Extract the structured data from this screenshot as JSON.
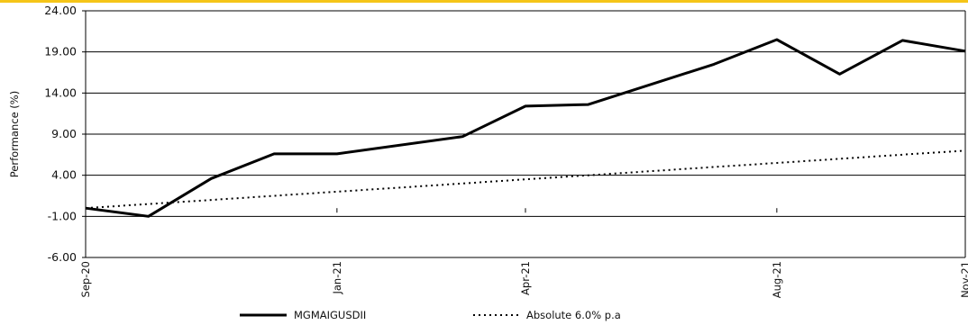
{
  "accent_color": "#f5c518",
  "chart_data": {
    "type": "line",
    "title": "",
    "xlabel": "",
    "ylabel": "Performance (%)",
    "ylim": [
      -6,
      24
    ],
    "yticks": [
      "-6.00",
      "-1.00",
      "4.00",
      "9.00",
      "14.00",
      "19.00",
      "24.00"
    ],
    "ytick_values": [
      -6,
      -1,
      4,
      9,
      14,
      19,
      24
    ],
    "x": [
      "Sep-20",
      "Oct-20",
      "Nov-20",
      "Dec-20",
      "Jan-21",
      "Feb-21",
      "Mar-21",
      "Apr-21",
      "May-21",
      "Jun-21",
      "Jul-21",
      "Aug-21",
      "Sep-21",
      "Oct-21",
      "Nov-21"
    ],
    "xtick_labels": [
      "Sep-20",
      "Jan-21",
      "Apr-21",
      "Aug-21",
      "Nov-21"
    ],
    "grid": "horizontal",
    "legend_position": "bottom",
    "series": [
      {
        "name": "MGMAIGUSDII",
        "style": "solid",
        "color": "#000000",
        "values": [
          0,
          -1,
          3.6,
          6.6,
          6.6,
          null,
          8.7,
          12.4,
          12.6,
          null,
          17.5,
          20.5,
          16.3,
          20.4,
          19.1
        ]
      },
      {
        "name": "Absolute 6.0% p.a",
        "style": "dotted",
        "color": "#000000",
        "values": [
          0,
          0.5,
          1,
          1.5,
          2,
          2.5,
          3,
          3.5,
          4,
          4.5,
          5,
          5.5,
          6,
          6.5,
          7
        ]
      }
    ]
  }
}
